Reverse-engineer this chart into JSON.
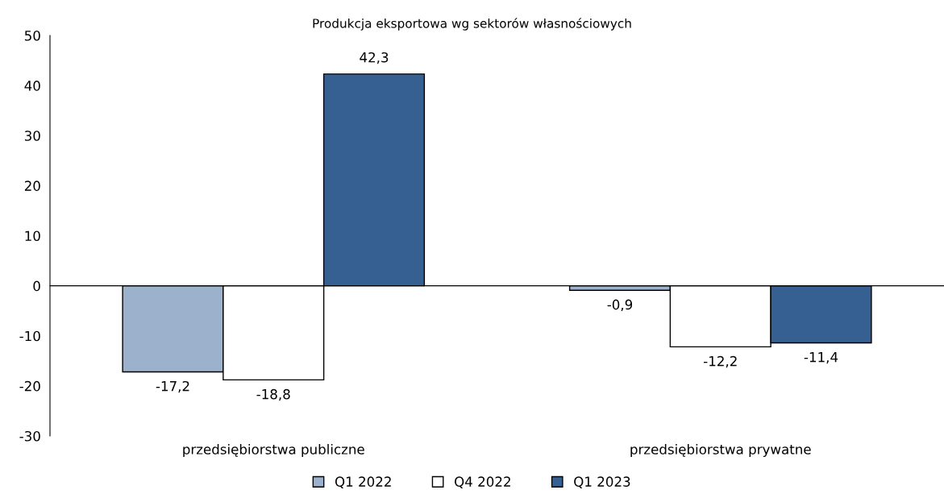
{
  "chart_data": {
    "type": "bar",
    "title": "Produkcja eksportowa wg sektorów własnościowych",
    "categories": [
      "przedsiębiorstwa publiczne",
      "przedsiębiorstwa prywatne"
    ],
    "series": [
      {
        "name": "Q1 2022",
        "color": "#9cb1cb",
        "values": [
          -17.2,
          -0.9
        ]
      },
      {
        "name": "Q4 2022",
        "color": "#ffffff",
        "values": [
          -18.8,
          -12.2
        ]
      },
      {
        "name": "Q1 2023",
        "color": "#376092",
        "values": [
          42.3,
          -11.4
        ]
      }
    ],
    "value_labels": [
      [
        "-17,2",
        "-0,9"
      ],
      [
        "-18,8",
        "-12,2"
      ],
      [
        "42,3",
        "-11,4"
      ]
    ],
    "ylim": [
      -30,
      50
    ],
    "yticks": [
      -30,
      -20,
      -10,
      0,
      10,
      20,
      30,
      40,
      50
    ],
    "legend": "bottom"
  }
}
